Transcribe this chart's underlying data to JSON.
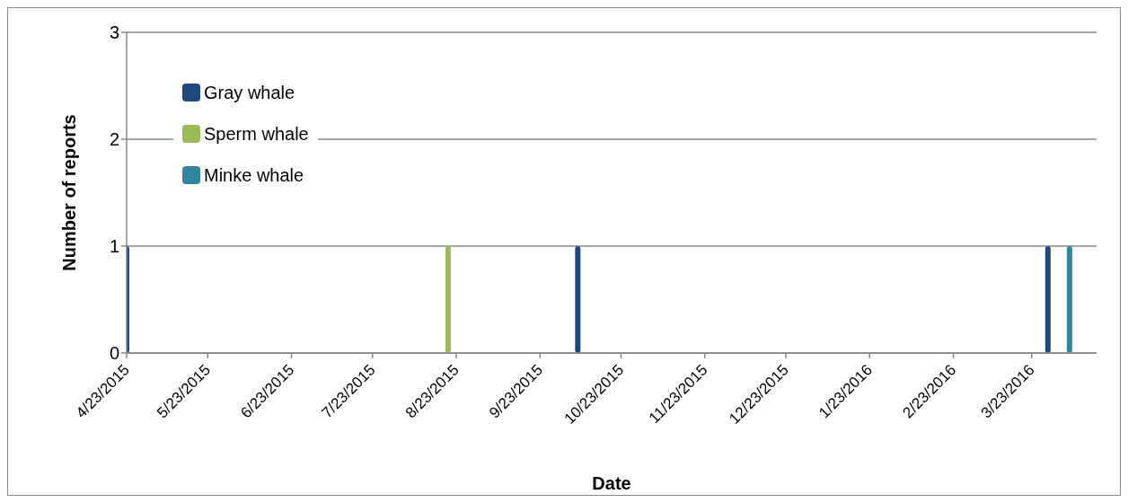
{
  "chart_data": {
    "type": "bar",
    "xlabel": "Date",
    "ylabel": "Number of reports",
    "xlim": [
      "2015-04-23",
      "2016-04-16"
    ],
    "xticks": [
      {
        "value": "2015-04-23",
        "label": "4/23/2015"
      },
      {
        "value": "2015-05-23",
        "label": "5/23/2015"
      },
      {
        "value": "2015-06-23",
        "label": "6/23/2015"
      },
      {
        "value": "2015-07-23",
        "label": "7/23/2015"
      },
      {
        "value": "2015-08-23",
        "label": "8/23/2015"
      },
      {
        "value": "2015-09-23",
        "label": "9/23/2015"
      },
      {
        "value": "2015-10-23",
        "label": "10/23/2015"
      },
      {
        "value": "2015-11-23",
        "label": "11/23/2015"
      },
      {
        "value": "2015-12-23",
        "label": "12/23/2015"
      },
      {
        "value": "2016-01-23",
        "label": "1/23/2016"
      },
      {
        "value": "2016-02-23",
        "label": "2/23/2016"
      },
      {
        "value": "2016-03-23",
        "label": "3/23/2016"
      }
    ],
    "ylim": [
      0,
      3
    ],
    "yticks": [
      0,
      1,
      2,
      3
    ],
    "grid": "y",
    "legend": "top left",
    "series": [
      {
        "name": "Gray whale",
        "color": "#1f497d",
        "x": [
          "2015-04-23",
          "2015-10-07",
          "2016-03-29"
        ],
        "values": [
          1,
          1,
          1
        ]
      },
      {
        "name": "Sperm whale",
        "color": "#9bbb59",
        "x": [
          "2015-08-20"
        ],
        "values": [
          1
        ]
      },
      {
        "name": "Minke whale",
        "color": "#31859c",
        "x": [
          "2016-04-06"
        ],
        "values": [
          1
        ]
      }
    ]
  }
}
